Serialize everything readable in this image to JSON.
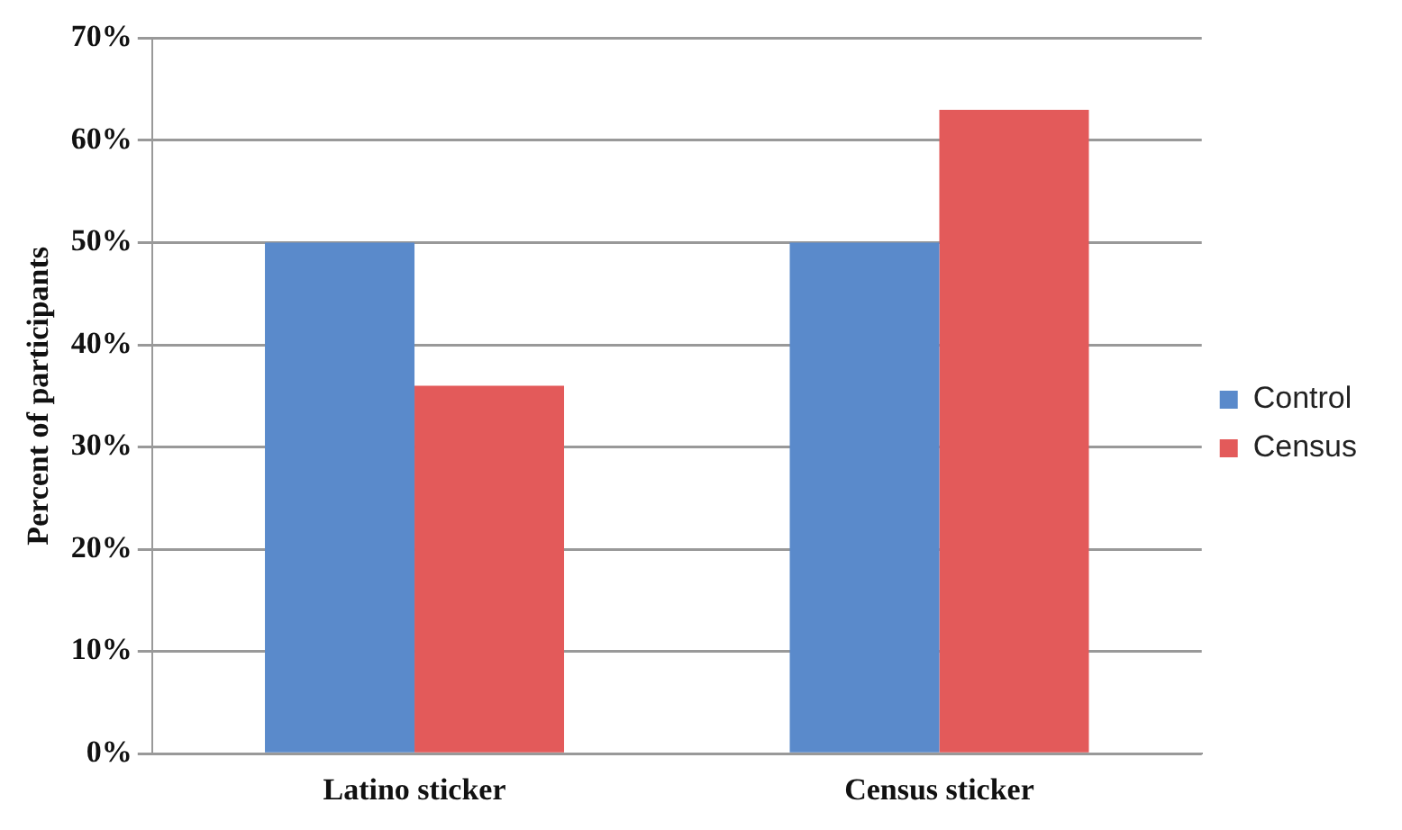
{
  "chart_data": {
    "type": "bar",
    "ylabel": "Percent of participants",
    "categories": [
      "Latino sticker",
      "Census sticker"
    ],
    "series": [
      {
        "name": "Control",
        "color": "#5a8acb",
        "values": [
          50,
          50
        ]
      },
      {
        "name": "Census",
        "color": "#e35a5a",
        "values": [
          36,
          63
        ]
      }
    ],
    "ylim": [
      0,
      70
    ],
    "yticks": [
      {
        "value": 0,
        "label": "0%"
      },
      {
        "value": 10,
        "label": "10%"
      },
      {
        "value": 20,
        "label": "20%"
      },
      {
        "value": 30,
        "label": "30%"
      },
      {
        "value": 40,
        "label": "40%"
      },
      {
        "value": 50,
        "label": "50%"
      },
      {
        "value": 60,
        "label": "60%"
      },
      {
        "value": 70,
        "label": "70%"
      }
    ],
    "grid": "y",
    "legend": "right"
  }
}
